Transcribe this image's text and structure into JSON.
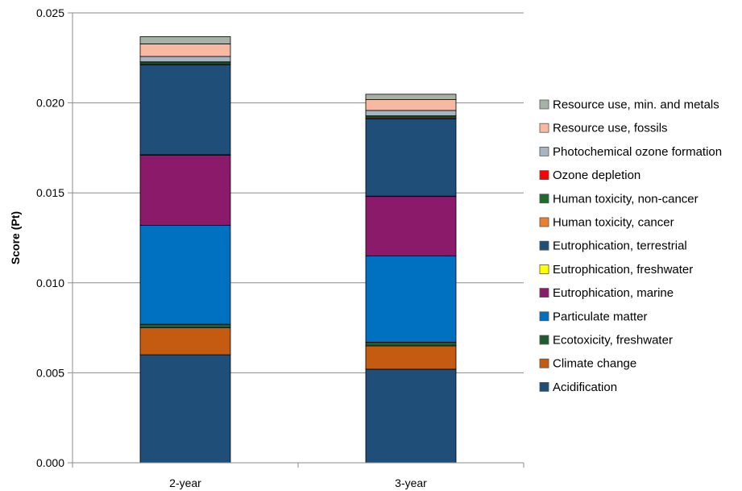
{
  "chart_data": {
    "type": "bar",
    "stacked": true,
    "title": "",
    "xlabel": "",
    "ylabel": "Score (Pt)",
    "ylim": [
      0,
      0.025
    ],
    "yticks": [
      "0.000",
      "0.005",
      "0.010",
      "0.015",
      "0.020",
      "0.025"
    ],
    "grid": true,
    "legend_position": "right",
    "categories": [
      "2-year",
      "3-year"
    ],
    "series": [
      {
        "name": "Acidification",
        "color": "#1f4e79",
        "values": [
          0.006,
          0.0052
        ]
      },
      {
        "name": "Climate change",
        "color": "#c55a11",
        "values": [
          0.0015,
          0.0013
        ]
      },
      {
        "name": "Ecotoxicity, freshwater",
        "color": "#1e5c2e",
        "values": [
          0.0002,
          0.0002
        ]
      },
      {
        "name": "Particulate matter",
        "color": "#0070c0",
        "values": [
          0.0055,
          0.0048
        ]
      },
      {
        "name": "Eutrophication, marine",
        "color": "#8b1a6b",
        "values": [
          0.0039,
          0.0033
        ]
      },
      {
        "name": "Eutrophication, freshwater",
        "color": "#ffff00",
        "values": [
          2e-05,
          2e-05
        ]
      },
      {
        "name": "Eutrophication, terrestrial",
        "color": "#1f4e79",
        "values": [
          0.005,
          0.0043
        ]
      },
      {
        "name": "Human toxicity, cancer",
        "color": "#ed7d31",
        "values": [
          5e-05,
          5e-05
        ]
      },
      {
        "name": "Human toxicity, non-cancer",
        "color": "#1e6b2e",
        "values": [
          0.0001,
          0.0001
        ]
      },
      {
        "name": "Ozone depletion",
        "color": "#ff0000",
        "values": [
          1e-05,
          1e-05
        ]
      },
      {
        "name": "Photochemical ozone formation",
        "color": "#a6b4c4",
        "values": [
          0.0003,
          0.0003
        ]
      },
      {
        "name": "Resource use, fossils",
        "color": "#f8b9a3",
        "values": [
          0.0007,
          0.0006
        ]
      },
      {
        "name": "Resource use, min. and metals",
        "color": "#a5b2a5",
        "values": [
          0.0004,
          0.0003
        ]
      }
    ]
  }
}
